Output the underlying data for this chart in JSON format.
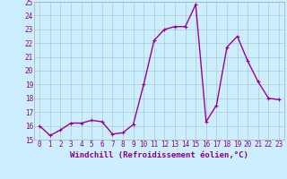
{
  "x": [
    0,
    1,
    2,
    3,
    4,
    5,
    6,
    7,
    8,
    9,
    10,
    11,
    12,
    13,
    14,
    15,
    16,
    17,
    18,
    19,
    20,
    21,
    22,
    23
  ],
  "y": [
    16.0,
    15.3,
    15.7,
    16.2,
    16.2,
    16.4,
    16.3,
    15.4,
    15.5,
    16.1,
    19.0,
    22.2,
    23.0,
    23.2,
    23.2,
    24.8,
    16.3,
    17.5,
    21.7,
    22.5,
    20.7,
    19.2,
    18.0,
    17.9
  ],
  "line_color": "#990099",
  "marker": "+",
  "marker_size": 3,
  "linewidth": 1.0,
  "background_color": "#cceeff",
  "grid_color": "#aacccc",
  "xlabel": "Windchill (Refroidissement éolien,°C)",
  "xlabel_fontsize": 6.5,
  "ylim": [
    15,
    25
  ],
  "xlim": [
    -0.5,
    23.5
  ],
  "yticks": [
    15,
    16,
    17,
    18,
    19,
    20,
    21,
    22,
    23,
    24,
    25
  ],
  "xticks": [
    0,
    1,
    2,
    3,
    4,
    5,
    6,
    7,
    8,
    9,
    10,
    11,
    12,
    13,
    14,
    15,
    16,
    17,
    18,
    19,
    20,
    21,
    22,
    23
  ],
  "tick_fontsize": 5.5,
  "label_color": "#880088"
}
